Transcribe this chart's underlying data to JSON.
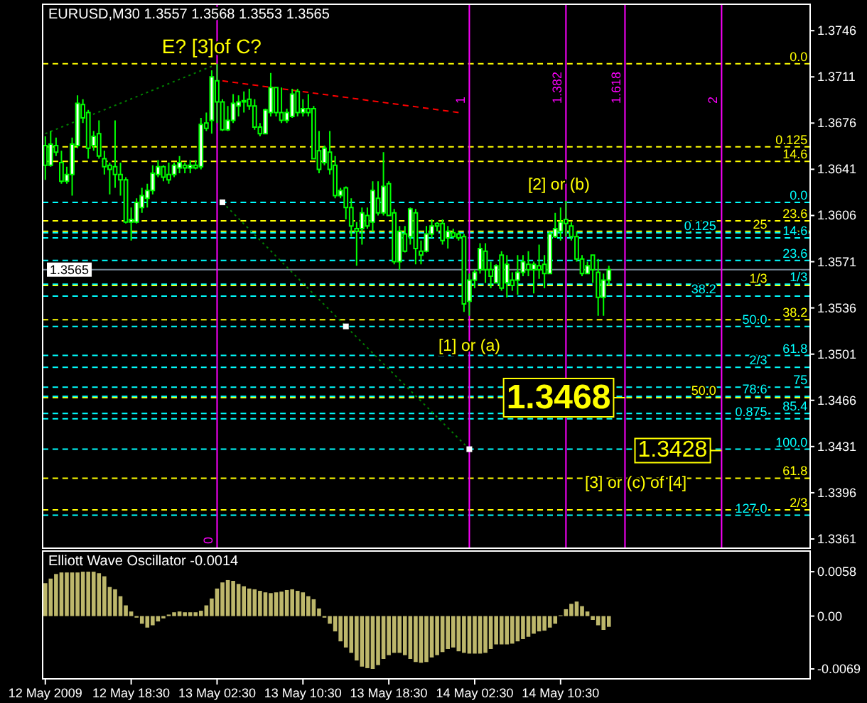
{
  "chart_data": [
    {
      "type": "candlestick",
      "title": "EURUSD,M30 1.3557 1.3568 1.3553 1.3565",
      "color": "#00ff00",
      "x": [
        "2009-05-12T10:30",
        "2009-05-12T11:00",
        "2009-05-12T11:30",
        "2009-05-12T12:00",
        "2009-05-12T12:30",
        "2009-05-12T13:00",
        "2009-05-12T13:30",
        "2009-05-12T14:00",
        "2009-05-12T14:30",
        "2009-05-12T15:00",
        "2009-05-12T15:30",
        "2009-05-12T16:00",
        "2009-05-12T16:30",
        "2009-05-12T17:00",
        "2009-05-12T17:30",
        "2009-05-12T18:00",
        "2009-05-12T18:30",
        "2009-05-12T19:00",
        "2009-05-12T19:30",
        "2009-05-12T20:00",
        "2009-05-12T20:30",
        "2009-05-12T21:00",
        "2009-05-12T21:30",
        "2009-05-12T22:00",
        "2009-05-12T22:30",
        "2009-05-12T23:00",
        "2009-05-12T23:30",
        "2009-05-13T00:00",
        "2009-05-13T00:30",
        "2009-05-13T01:00",
        "2009-05-13T01:30",
        "2009-05-13T02:00",
        "2009-05-13T02:30",
        "2009-05-13T03:00",
        "2009-05-13T03:30",
        "2009-05-13T04:00",
        "2009-05-13T04:30",
        "2009-05-13T05:00",
        "2009-05-13T05:30",
        "2009-05-13T06:00",
        "2009-05-13T06:30",
        "2009-05-13T07:00",
        "2009-05-13T07:30",
        "2009-05-13T08:00",
        "2009-05-13T08:30",
        "2009-05-13T09:00",
        "2009-05-13T09:30",
        "2009-05-13T10:00",
        "2009-05-13T10:30",
        "2009-05-13T11:00",
        "2009-05-13T11:30",
        "2009-05-13T12:00",
        "2009-05-13T12:30",
        "2009-05-13T13:00",
        "2009-05-13T13:30",
        "2009-05-13T14:00",
        "2009-05-13T14:30",
        "2009-05-13T15:00",
        "2009-05-13T15:30",
        "2009-05-13T16:00",
        "2009-05-13T16:30",
        "2009-05-13T17:00",
        "2009-05-13T17:30",
        "2009-05-13T18:00",
        "2009-05-13T18:30",
        "2009-05-13T19:00",
        "2009-05-13T19:30",
        "2009-05-13T20:00",
        "2009-05-13T20:30",
        "2009-05-13T21:00",
        "2009-05-13T21:30",
        "2009-05-13T22:00",
        "2009-05-13T22:30",
        "2009-05-13T23:00",
        "2009-05-13T23:30",
        "2009-05-14T00:00",
        "2009-05-14T00:30",
        "2009-05-14T01:00",
        "2009-05-14T01:30",
        "2009-05-14T02:00",
        "2009-05-14T02:30",
        "2009-05-14T03:00",
        "2009-05-14T03:30",
        "2009-05-14T04:00",
        "2009-05-14T04:30",
        "2009-05-14T05:00",
        "2009-05-14T05:30",
        "2009-05-14T06:00",
        "2009-05-14T06:30",
        "2009-05-14T07:00",
        "2009-05-14T07:30",
        "2009-05-14T08:00",
        "2009-05-14T08:30",
        "2009-05-14T09:00",
        "2009-05-14T09:30",
        "2009-05-14T10:00",
        "2009-05-14T10:30",
        "2009-05-14T11:00",
        "2009-05-14T11:30",
        "2009-05-14T12:00",
        "2009-05-14T12:30",
        "2009-05-14T13:00",
        "2009-05-14T13:30",
        "2009-05-14T14:00",
        "2009-05-14T14:30",
        "2009-05-14T15:00"
      ],
      "ohlc": [
        [
          1.3659,
          1.3666,
          1.3633,
          1.3644
        ],
        [
          1.3644,
          1.367,
          1.3643,
          1.366
        ],
        [
          1.3659,
          1.3665,
          1.3651,
          1.3654
        ],
        [
          1.3646,
          1.3655,
          1.363,
          1.3632
        ],
        [
          1.3632,
          1.3643,
          1.363,
          1.3637
        ],
        [
          1.3637,
          1.3665,
          1.3621,
          1.366
        ],
        [
          1.3659,
          1.3697,
          1.3657,
          1.3691
        ],
        [
          1.369,
          1.3694,
          1.3676,
          1.368
        ],
        [
          1.3684,
          1.3686,
          1.3649,
          1.3657
        ],
        [
          1.3659,
          1.367,
          1.3655,
          1.3666
        ],
        [
          1.3668,
          1.3678,
          1.3649,
          1.3651
        ],
        [
          1.3649,
          1.3655,
          1.3637,
          1.3643
        ],
        [
          1.3644,
          1.3646,
          1.3622,
          1.3641
        ],
        [
          1.3643,
          1.3678,
          1.3627,
          1.3637
        ],
        [
          1.3637,
          1.3646,
          1.3621,
          1.3633
        ],
        [
          1.3633,
          1.3635,
          1.36,
          1.3601
        ],
        [
          1.3601,
          1.3612,
          1.3587,
          1.3603
        ],
        [
          1.3601,
          1.3619,
          1.36,
          1.3616
        ],
        [
          1.3612,
          1.3627,
          1.3608,
          1.3621
        ],
        [
          1.3619,
          1.363,
          1.3612,
          1.3625
        ],
        [
          1.3625,
          1.3644,
          1.3622,
          1.3638
        ],
        [
          1.3637,
          1.3648,
          1.3635,
          1.3643
        ],
        [
          1.3643,
          1.3644,
          1.3632,
          1.3635
        ],
        [
          1.3637,
          1.3646,
          1.363,
          1.3633
        ],
        [
          1.3637,
          1.3646,
          1.3635,
          1.3644
        ],
        [
          1.3642,
          1.3651,
          1.3638,
          1.3646
        ],
        [
          1.3644,
          1.3646,
          1.3638,
          1.3642
        ],
        [
          1.3642,
          1.3648,
          1.3638,
          1.3644
        ],
        [
          1.3644,
          1.3648,
          1.3641,
          1.3642
        ],
        [
          1.3643,
          1.368,
          1.3641,
          1.3675
        ],
        [
          1.3676,
          1.3684,
          1.367,
          1.3672
        ],
        [
          1.3678,
          1.3716,
          1.3668,
          1.3711
        ],
        [
          1.3708,
          1.3721,
          1.3676,
          1.3692
        ],
        [
          1.3692,
          1.3694,
          1.367,
          1.3671
        ],
        [
          1.3671,
          1.3689,
          1.367,
          1.3678
        ],
        [
          1.3678,
          1.3698,
          1.3676,
          1.3691
        ],
        [
          1.3689,
          1.3697,
          1.3681,
          1.3692
        ],
        [
          1.3692,
          1.37,
          1.3684,
          1.3693
        ],
        [
          1.3694,
          1.3702,
          1.3686,
          1.3689
        ],
        [
          1.3689,
          1.3694,
          1.3671,
          1.3673
        ],
        [
          1.3673,
          1.3676,
          1.3666,
          1.3668
        ],
        [
          1.3668,
          1.3687,
          1.3668,
          1.3686
        ],
        [
          1.3684,
          1.3714,
          1.3681,
          1.3703
        ],
        [
          1.3703,
          1.3703,
          1.3681,
          1.3684
        ],
        [
          1.3684,
          1.3703,
          1.3676,
          1.3678
        ],
        [
          1.3678,
          1.3687,
          1.3676,
          1.3684
        ],
        [
          1.3681,
          1.3702,
          1.368,
          1.3698
        ],
        [
          1.37,
          1.3702,
          1.3681,
          1.3684
        ],
        [
          1.3684,
          1.3694,
          1.3681,
          1.3687
        ],
        [
          1.3687,
          1.3698,
          1.3681,
          1.3684
        ],
        [
          1.3687,
          1.3689,
          1.3649,
          1.3649
        ],
        [
          1.3655,
          1.367,
          1.3638,
          1.3641
        ],
        [
          1.3646,
          1.3659,
          1.3644,
          1.3657
        ],
        [
          1.3654,
          1.367,
          1.3637,
          1.3641
        ],
        [
          1.3644,
          1.3651,
          1.3619,
          1.3621
        ],
        [
          1.3621,
          1.3627,
          1.3619,
          1.3625
        ],
        [
          1.3627,
          1.3628,
          1.3603,
          1.3612
        ],
        [
          1.3612,
          1.3619,
          1.359,
          1.3598
        ],
        [
          1.3596,
          1.3601,
          1.3568,
          1.3594
        ],
        [
          1.3596,
          1.3612,
          1.3584,
          1.3608
        ],
        [
          1.3606,
          1.3612,
          1.3596,
          1.3598
        ],
        [
          1.3601,
          1.3632,
          1.3594,
          1.3625
        ],
        [
          1.3619,
          1.3632,
          1.3606,
          1.3608
        ],
        [
          1.3608,
          1.3654,
          1.3606,
          1.3628
        ],
        [
          1.363,
          1.3632,
          1.3606,
          1.3606
        ],
        [
          1.3608,
          1.3611,
          1.3569,
          1.3571
        ],
        [
          1.3571,
          1.3598,
          1.3565,
          1.3594
        ],
        [
          1.3592,
          1.3598,
          1.3578,
          1.3579
        ],
        [
          1.359,
          1.3612,
          1.3584,
          1.3611
        ],
        [
          1.3608,
          1.3611,
          1.3569,
          1.3581
        ],
        [
          1.3579,
          1.3587,
          1.3569,
          1.3576
        ],
        [
          1.3579,
          1.3598,
          1.3578,
          1.3592
        ],
        [
          1.3592,
          1.3603,
          1.3589,
          1.3598
        ],
        [
          1.36,
          1.3601,
          1.3594,
          1.3598
        ],
        [
          1.36,
          1.3603,
          1.3584,
          1.3587
        ],
        [
          1.3589,
          1.3598,
          1.3581,
          1.3594
        ],
        [
          1.3593,
          1.3596,
          1.3589,
          1.359
        ],
        [
          1.3592,
          1.3594,
          1.3587,
          1.3589
        ],
        [
          1.359,
          1.3592,
          1.3533,
          1.3539
        ],
        [
          1.3541,
          1.3562,
          1.353,
          1.3557
        ],
        [
          1.3557,
          1.3565,
          1.3551,
          1.3563
        ],
        [
          1.3565,
          1.3585,
          1.3562,
          1.3581
        ],
        [
          1.3579,
          1.3585,
          1.3555,
          1.3565
        ],
        [
          1.3565,
          1.3571,
          1.3551,
          1.356
        ],
        [
          1.3555,
          1.3569,
          1.3555,
          1.3568
        ],
        [
          1.3576,
          1.3579,
          1.3549,
          1.3551
        ],
        [
          1.3555,
          1.3576,
          1.3544,
          1.3569
        ],
        [
          1.3557,
          1.3563,
          1.3549,
          1.3553
        ],
        [
          1.3557,
          1.3576,
          1.3546,
          1.3563
        ],
        [
          1.3563,
          1.3576,
          1.356,
          1.3571
        ],
        [
          1.3569,
          1.3579,
          1.356,
          1.3565
        ],
        [
          1.3565,
          1.3571,
          1.3547,
          1.3569
        ],
        [
          1.3568,
          1.3584,
          1.3558,
          1.3565
        ],
        [
          1.3569,
          1.3576,
          1.3551,
          1.3562
        ],
        [
          1.3562,
          1.3594,
          1.3562,
          1.3592
        ],
        [
          1.359,
          1.3608,
          1.3589,
          1.3596
        ],
        [
          1.3594,
          1.3612,
          1.3587,
          1.3601
        ],
        [
          1.3603,
          1.3617,
          1.359,
          1.36
        ],
        [
          1.3598,
          1.3601,
          1.3587,
          1.359
        ],
        [
          1.359,
          1.3594,
          1.3571,
          1.3573
        ],
        [
          1.3573,
          1.3576,
          1.356,
          1.3562
        ],
        [
          1.3562,
          1.3571,
          1.3562,
          1.3568
        ],
        [
          1.3576,
          1.3576,
          1.3555,
          1.3565
        ],
        [
          1.3563,
          1.3573,
          1.353,
          1.3544
        ],
        [
          1.3544,
          1.3562,
          1.353,
          1.3557
        ],
        [
          1.3557,
          1.3568,
          1.3553,
          1.3565
        ]
      ],
      "series": [
        {
          "type": "line",
          "x": [
            "2009-05-12T10:30",
            "2009-05-13T02:00"
          ],
          "values": [
            1.3668,
            1.3719
          ],
          "color": "#008000",
          "line_style": "dotted"
        },
        {
          "type": "line",
          "x": [
            "2009-05-13T03:00",
            "2009-05-14T01:00"
          ],
          "values": [
            1.3708,
            1.3684
          ],
          "color": "#ff0000",
          "line_style": "dashed"
        },
        {
          "type": "line",
          "x": [
            "2009-05-13T03:00",
            "2009-05-13T14:30",
            "2009-05-14T02:00"
          ],
          "values": [
            1.3616,
            1.3522,
            1.3429
          ],
          "color": "#008000",
          "line_style": "dotted"
        },
        {
          "type": "scatter",
          "x": [
            "2009-05-13T03:00",
            "2009-05-13T14:30",
            "2009-05-14T02:00"
          ],
          "values": [
            1.3616,
            1.3522,
            1.3429
          ],
          "color": "#ffffff",
          "marker": "square"
        }
      ],
      "xlim": [
        "2009-05-12T10:15",
        "2009-05-15T09:45"
      ],
      "ylim": [
        1.3354,
        1.3766
      ],
      "yticks": [
        1.3746,
        1.3711,
        1.3676,
        1.3641,
        1.3606,
        1.3571,
        1.3536,
        1.3501,
        1.3466,
        1.3431,
        1.3396,
        1.3361
      ],
      "tick_labels": "y",
      "ref_lines": [
        {
          "axis": "y",
          "value": 1.3721,
          "color": "#ffff00",
          "line_style": "dashed"
        },
        {
          "axis": "y",
          "value": 1.3658,
          "color": "#ffff00",
          "line_style": "dashed"
        },
        {
          "axis": "y",
          "value": 1.3647,
          "color": "#ffff00",
          "line_style": "dashed"
        },
        {
          "axis": "y",
          "value": 1.3602,
          "color": "#ffff00",
          "line_style": "dashed"
        },
        {
          "axis": "y",
          "value": 1.3594,
          "color": "#ffff00",
          "line_style": "dashed"
        },
        {
          "axis": "y",
          "value": 1.3553,
          "color": "#ffff00",
          "line_style": "dashed"
        },
        {
          "axis": "y",
          "value": 1.3527,
          "color": "#ffff00",
          "line_style": "dashed"
        },
        {
          "axis": "y",
          "value": 1.3468,
          "color": "#ffff00",
          "line_style": "dashed"
        },
        {
          "axis": "y",
          "value": 1.3407,
          "color": "#ffff00",
          "line_style": "dashed"
        },
        {
          "axis": "y",
          "value": 1.3383,
          "color": "#ffff00",
          "line_style": "dashed"
        },
        {
          "axis": "y",
          "value": 1.3616,
          "color": "#00ffff",
          "line_style": "dashed"
        },
        {
          "axis": "y",
          "value": 1.3593,
          "color": "#00ffff",
          "line_style": "dashed"
        },
        {
          "axis": "y",
          "value": 1.3589,
          "color": "#00ffff",
          "line_style": "dashed"
        },
        {
          "axis": "y",
          "value": 1.3572,
          "color": "#00ffff",
          "line_style": "dashed"
        },
        {
          "axis": "y",
          "value": 1.3554,
          "color": "#00ffff",
          "line_style": "dashed"
        },
        {
          "axis": "y",
          "value": 1.3545,
          "color": "#00ffff",
          "line_style": "dashed"
        },
        {
          "axis": "y",
          "value": 1.3522,
          "color": "#00ffff",
          "line_style": "dashed"
        },
        {
          "axis": "y",
          "value": 1.35,
          "color": "#00ffff",
          "line_style": "dashed"
        },
        {
          "axis": "y",
          "value": 1.3491,
          "color": "#00ffff",
          "line_style": "dashed"
        },
        {
          "axis": "y",
          "value": 1.3476,
          "color": "#00ffff",
          "line_style": "dashed"
        },
        {
          "axis": "y",
          "value": 1.3469,
          "color": "#00ffff",
          "line_style": "dashed"
        },
        {
          "axis": "y",
          "value": 1.3456,
          "color": "#00ffff",
          "line_style": "dashed"
        },
        {
          "axis": "y",
          "value": 1.3452,
          "color": "#00ffff",
          "line_style": "dashed"
        },
        {
          "axis": "y",
          "value": 1.3429,
          "color": "#00ffff",
          "line_style": "dashed"
        },
        {
          "axis": "y",
          "value": 1.3379,
          "color": "#00ffff",
          "line_style": "dashed"
        },
        {
          "axis": "y",
          "value": 1.3565,
          "label": "1.3565",
          "color": "#778899",
          "line_style": "solid"
        },
        {
          "axis": "x",
          "value": "2009-05-13T02:30",
          "label": "0",
          "color": "#ff00ff",
          "line_style": "solid"
        },
        {
          "axis": "x",
          "value": "2009-05-14T02:00",
          "label": "1",
          "color": "#ff00ff",
          "line_style": "solid"
        },
        {
          "axis": "x",
          "value": "2009-05-14T11:00",
          "label": "1.382",
          "color": "#ff00ff",
          "line_style": "solid"
        },
        {
          "axis": "x",
          "value": "2009-05-14T16:30",
          "label": "1.618",
          "color": "#ff00ff",
          "line_style": "solid"
        },
        {
          "axis": "x",
          "value": "2009-05-15T01:30",
          "label": "2",
          "color": "#ff00ff",
          "line_style": "solid"
        }
      ],
      "annotations": [
        {
          "text": "E? [3]of C?",
          "x": "2009-05-13T02:00",
          "y": 1.3734
        },
        {
          "text": "[2] or (b)",
          "x": "2009-05-14T11:00",
          "y": 1.3617
        },
        {
          "text": "[1] or (a)",
          "x": "2009-05-14T02:00",
          "y": 1.3507
        },
        {
          "text": "1.3468",
          "x": "2009-05-14T16:30",
          "y": 1.3468
        },
        {
          "text": "1.3428",
          "x": "2009-05-15T01:30",
          "y": 1.3428
        },
        {
          "text": "[3] or (c) of [4]",
          "x": "2009-05-14T17:30",
          "y": 1.3403
        },
        {
          "text": "0.0",
          "x": "2009-05-15T09:30",
          "y": 1.3721
        },
        {
          "text": "0.125",
          "x": "2009-05-15T09:30",
          "y": 1.3658
        },
        {
          "text": "14.6",
          "x": "2009-05-15T09:30",
          "y": 1.3647
        },
        {
          "text": "23.6",
          "x": "2009-05-15T09:30",
          "y": 1.3602
        },
        {
          "text": "25",
          "x": "2009-05-15T05:45",
          "y": 1.3594
        },
        {
          "text": "1/3",
          "x": "2009-05-15T05:45",
          "y": 1.3553
        },
        {
          "text": "38.2",
          "x": "2009-05-15T09:30",
          "y": 1.3527
        },
        {
          "text": "50.0",
          "x": "2009-05-15T01:00",
          "y": 1.3468
        },
        {
          "text": "61.8",
          "x": "2009-05-15T09:30",
          "y": 1.3407
        },
        {
          "text": "2/3",
          "x": "2009-05-15T09:30",
          "y": 1.3383
        },
        {
          "text": "0.0",
          "x": "2009-05-15T09:30",
          "y": 1.3616
        },
        {
          "text": "0.125",
          "x": "2009-05-15T01:00",
          "y": 1.3593
        },
        {
          "text": "14.6",
          "x": "2009-05-15T09:30",
          "y": 1.3589
        },
        {
          "text": "23.6",
          "x": "2009-05-15T09:30",
          "y": 1.3572
        },
        {
          "text": "1/3",
          "x": "2009-05-15T09:30",
          "y": 1.3554
        },
        {
          "text": "38.2",
          "x": "2009-05-15T01:00",
          "y": 1.3545
        },
        {
          "text": "50.0",
          "x": "2009-05-15T05:45",
          "y": 1.3522
        },
        {
          "text": "61.8",
          "x": "2009-05-15T09:30",
          "y": 1.35
        },
        {
          "text": "2/3",
          "x": "2009-05-15T05:45",
          "y": 1.3491
        },
        {
          "text": "75",
          "x": "2009-05-15T09:30",
          "y": 1.3476
        },
        {
          "text": "78.6",
          "x": "2009-05-15T05:45",
          "y": 1.3469
        },
        {
          "text": "85.4",
          "x": "2009-05-15T09:30",
          "y": 1.3456
        },
        {
          "text": "0.875",
          "x": "2009-05-15T05:45",
          "y": 1.3452
        },
        {
          "text": "100.0",
          "x": "2009-05-15T09:30",
          "y": 1.3429
        },
        {
          "text": "127.0",
          "x": "2009-05-15T05:45",
          "y": 1.3379
        }
      ]
    },
    {
      "type": "bar",
      "title": "Elliott Wave Oscillator -0.0014",
      "color": "#bdb76b",
      "x": [
        "2009-05-12T10:30",
        "2009-05-12T11:00",
        "2009-05-12T11:30",
        "2009-05-12T12:00",
        "2009-05-12T12:30",
        "2009-05-12T13:00",
        "2009-05-12T13:30",
        "2009-05-12T14:00",
        "2009-05-12T14:30",
        "2009-05-12T15:00",
        "2009-05-12T15:30",
        "2009-05-12T16:00",
        "2009-05-12T16:30",
        "2009-05-12T17:00",
        "2009-05-12T17:30",
        "2009-05-12T18:00",
        "2009-05-12T18:30",
        "2009-05-12T19:00",
        "2009-05-12T19:30",
        "2009-05-12T20:00",
        "2009-05-12T20:30",
        "2009-05-12T21:00",
        "2009-05-12T21:30",
        "2009-05-12T22:00",
        "2009-05-12T22:30",
        "2009-05-12T23:00",
        "2009-05-12T23:30",
        "2009-05-13T00:00",
        "2009-05-13T00:30",
        "2009-05-13T01:00",
        "2009-05-13T01:30",
        "2009-05-13T02:00",
        "2009-05-13T02:30",
        "2009-05-13T03:00",
        "2009-05-13T03:30",
        "2009-05-13T04:00",
        "2009-05-13T04:30",
        "2009-05-13T05:00",
        "2009-05-13T05:30",
        "2009-05-13T06:00",
        "2009-05-13T06:30",
        "2009-05-13T07:00",
        "2009-05-13T07:30",
        "2009-05-13T08:00",
        "2009-05-13T08:30",
        "2009-05-13T09:00",
        "2009-05-13T09:30",
        "2009-05-13T10:00",
        "2009-05-13T10:30",
        "2009-05-13T11:00",
        "2009-05-13T11:30",
        "2009-05-13T12:00",
        "2009-05-13T12:30",
        "2009-05-13T13:00",
        "2009-05-13T13:30",
        "2009-05-13T14:00",
        "2009-05-13T14:30",
        "2009-05-13T15:00",
        "2009-05-13T15:30",
        "2009-05-13T16:00",
        "2009-05-13T16:30",
        "2009-05-13T17:00",
        "2009-05-13T17:30",
        "2009-05-13T18:00",
        "2009-05-13T18:30",
        "2009-05-13T19:00",
        "2009-05-13T19:30",
        "2009-05-13T20:00",
        "2009-05-13T20:30",
        "2009-05-13T21:00",
        "2009-05-13T21:30",
        "2009-05-13T22:00",
        "2009-05-13T22:30",
        "2009-05-13T23:00",
        "2009-05-13T23:30",
        "2009-05-14T00:00",
        "2009-05-14T00:30",
        "2009-05-14T01:00",
        "2009-05-14T01:30",
        "2009-05-14T02:00",
        "2009-05-14T02:30",
        "2009-05-14T03:00",
        "2009-05-14T03:30",
        "2009-05-14T04:00",
        "2009-05-14T04:30",
        "2009-05-14T05:00",
        "2009-05-14T05:30",
        "2009-05-14T06:00",
        "2009-05-14T06:30",
        "2009-05-14T07:00",
        "2009-05-14T07:30",
        "2009-05-14T08:00",
        "2009-05-14T08:30",
        "2009-05-14T09:00",
        "2009-05-14T09:30",
        "2009-05-14T10:00",
        "2009-05-14T10:30",
        "2009-05-14T11:00",
        "2009-05-14T11:30",
        "2009-05-14T12:00",
        "2009-05-14T12:30",
        "2009-05-14T13:00",
        "2009-05-14T13:30",
        "2009-05-14T14:00",
        "2009-05-14T14:30",
        "2009-05-14T15:00"
      ],
      "values": [
        0.0043,
        0.0049,
        0.0055,
        0.0057,
        0.0057,
        0.0057,
        0.0057,
        0.0058,
        0.0058,
        0.0058,
        0.0056,
        0.0052,
        0.0038,
        0.0035,
        0.0026,
        0.0014,
        0.0006,
        -0.0002,
        -0.001,
        -0.0015,
        -0.0012,
        -0.0007,
        -0.0003,
        0.0002,
        0.0005,
        0.0006,
        0.0005,
        0.0005,
        0.0005,
        0.0007,
        0.0014,
        0.0023,
        0.0036,
        0.0044,
        0.0047,
        0.0046,
        0.0042,
        0.0039,
        0.0036,
        0.0035,
        0.0033,
        0.0031,
        0.003,
        0.0031,
        0.0032,
        0.0034,
        0.0035,
        0.0033,
        0.0031,
        0.0026,
        0.0022,
        0.001,
        -0.0002,
        -0.001,
        -0.002,
        -0.0033,
        -0.0041,
        -0.0048,
        -0.0058,
        -0.0066,
        -0.0068,
        -0.0069,
        -0.0064,
        -0.0056,
        -0.0051,
        -0.0048,
        -0.0048,
        -0.0051,
        -0.0056,
        -0.006,
        -0.0061,
        -0.006,
        -0.0054,
        -0.0051,
        -0.0047,
        -0.0043,
        -0.0041,
        -0.0046,
        -0.0048,
        -0.0049,
        -0.0049,
        -0.0049,
        -0.0048,
        -0.0043,
        -0.0037,
        -0.0037,
        -0.0037,
        -0.0036,
        -0.0033,
        -0.003,
        -0.0027,
        -0.0023,
        -0.002,
        -0.0019,
        -0.0015,
        -0.001,
        0.0001,
        0.0009,
        0.0016,
        0.0019,
        0.0013,
        0.0006,
        -0.0005,
        -0.0012,
        -0.0018,
        -0.0014
      ],
      "xlim": [
        "2009-05-12T10:15",
        "2009-05-15T09:45"
      ],
      "ylim": [
        -0.0082,
        0.0085
      ],
      "xticks": [
        {
          "value": "2009-05-12T10:30",
          "label": "12 May 2009"
        },
        {
          "value": "2009-05-12T18:30",
          "label": "12 May 18:30"
        },
        {
          "value": "2009-05-13T02:30",
          "label": "13 May 02:30"
        },
        {
          "value": "2009-05-13T10:30",
          "label": "13 May 10:30"
        },
        {
          "value": "2009-05-13T18:30",
          "label": "13 May 18:30"
        },
        {
          "value": "2009-05-14T02:30",
          "label": "14 May 02:30"
        },
        {
          "value": "2009-05-14T10:30",
          "label": "14 May 10:30"
        }
      ],
      "yticks": [
        0.0058,
        {
          "value": 0,
          "label": "0.00"
        },
        -0.0069
      ]
    }
  ]
}
